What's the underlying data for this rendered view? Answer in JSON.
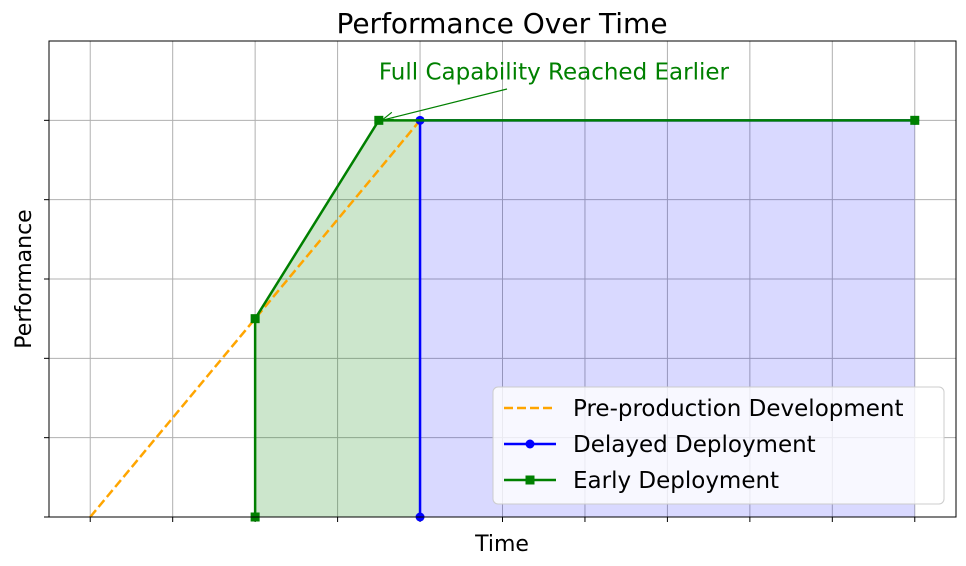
{
  "chart_data": {
    "type": "line",
    "title": "Performance Over Time",
    "xlabel": "Time",
    "ylabel": "Performance",
    "xlim": [
      -0.5,
      10.5
    ],
    "ylim": [
      0,
      6
    ],
    "xticks": [
      0,
      1,
      2,
      3,
      4,
      5,
      6,
      7,
      8,
      9,
      10
    ],
    "yticks": [
      0,
      1,
      2,
      3,
      4,
      5
    ],
    "tick_labels_shown": false,
    "grid": true,
    "legend_position": "lower-right",
    "series": [
      {
        "name": "Pre-production Development",
        "x": [
          0,
          4
        ],
        "y": [
          0,
          5
        ],
        "color": "#FFA500",
        "style": "dashed",
        "marker": "none"
      },
      {
        "name": "Delayed Deployment",
        "x": [
          4,
          4,
          10
        ],
        "y": [
          0,
          5,
          5
        ],
        "color": "#0000FF",
        "style": "solid",
        "marker": "circle",
        "fill": "#0000FF",
        "fill_alpha": 0.15
      },
      {
        "name": "Early Deployment",
        "x": [
          2,
          2,
          3.5,
          10
        ],
        "y": [
          0,
          2.5,
          5,
          5
        ],
        "color": "#008000",
        "style": "solid",
        "marker": "square",
        "fill": "#008000",
        "fill_alpha": 0.2,
        "fill_range": [
          2,
          4
        ]
      }
    ],
    "annotations": [
      {
        "text": "Full Capability Reached Earlier",
        "xy": [
          3.5,
          5
        ],
        "xytext": [
          3.5,
          5.5
        ],
        "color": "#008000",
        "arrow": true
      }
    ]
  }
}
